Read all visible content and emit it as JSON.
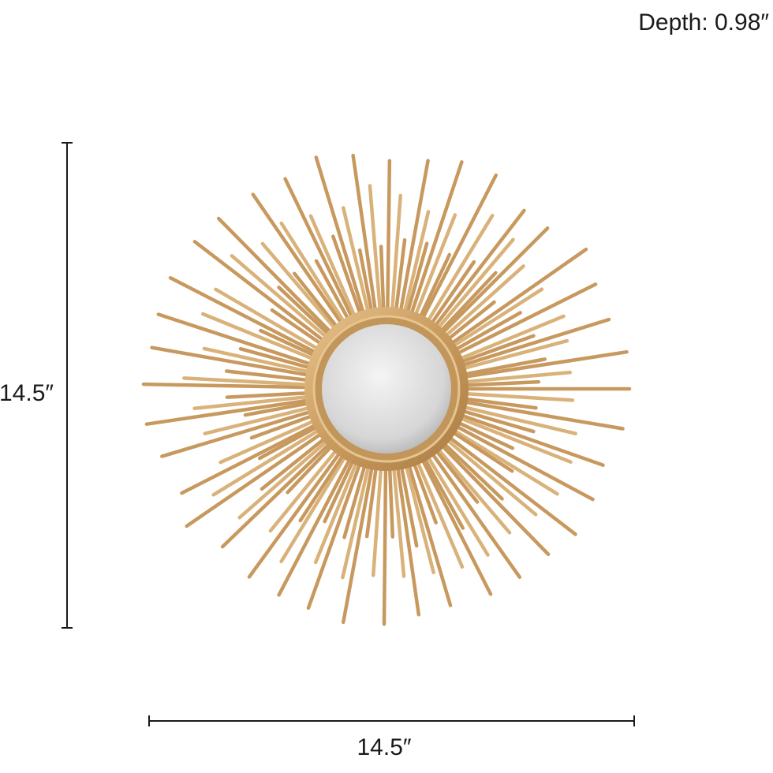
{
  "depth_label": "Depth: 0.98″",
  "height_label": "14.5″",
  "width_label": "14.5″"
}
